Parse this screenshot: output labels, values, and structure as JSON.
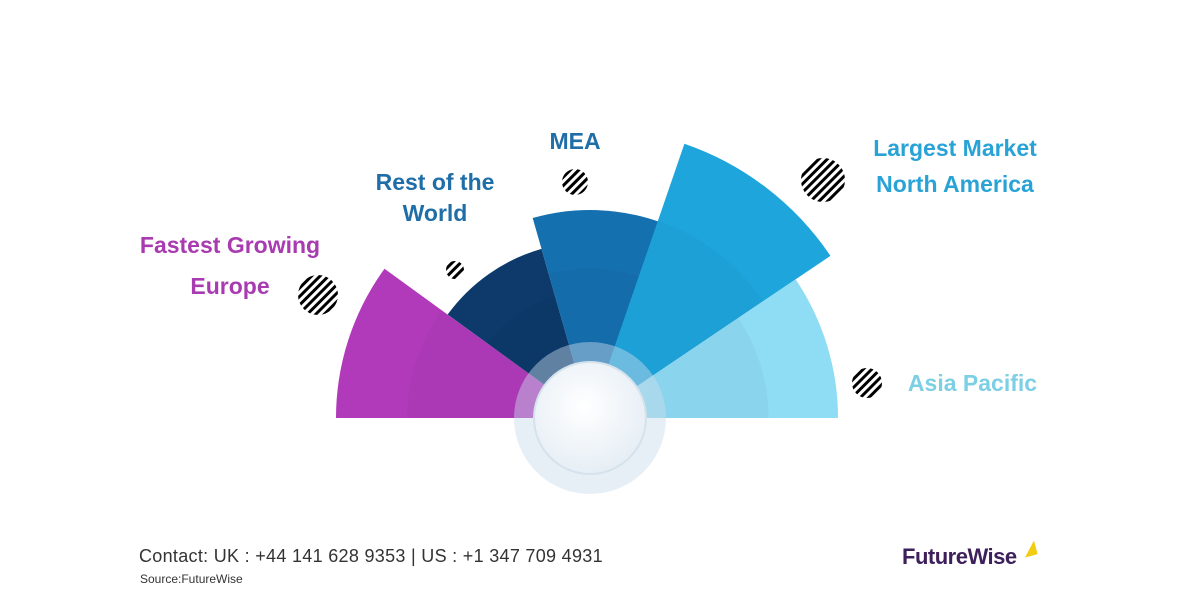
{
  "regions": [
    {
      "name": "Europe",
      "label_lines": [
        "Fastest Growing",
        "Europe"
      ],
      "color": "#b13aba",
      "label_color": "#a83bb0"
    },
    {
      "name": "Rest of the World",
      "label_lines": [
        "Rest of the",
        "World"
      ],
      "color": "#0d3a6b",
      "label_color": "#1f6ea8"
    },
    {
      "name": "MEA",
      "label_lines": [
        "MEA"
      ],
      "color": "#1570b0",
      "label_color": "#1f6ea8"
    },
    {
      "name": "North America",
      "label_lines": [
        "Largest Market",
        "North America"
      ],
      "color": "#1ea6dc",
      "label_color": "#29a3d6"
    },
    {
      "name": "Asia Pacific",
      "label_lines": [
        "Asia Pacific"
      ],
      "color": "#8fdcf5",
      "label_color": "#7ccfe4"
    }
  ],
  "footer": {
    "contact": "Contact:  UK : +44 141 628 9353  |  US :  +1 347 709 4931",
    "source": "Source:FutureWise",
    "logo": "FutureWise"
  }
}
